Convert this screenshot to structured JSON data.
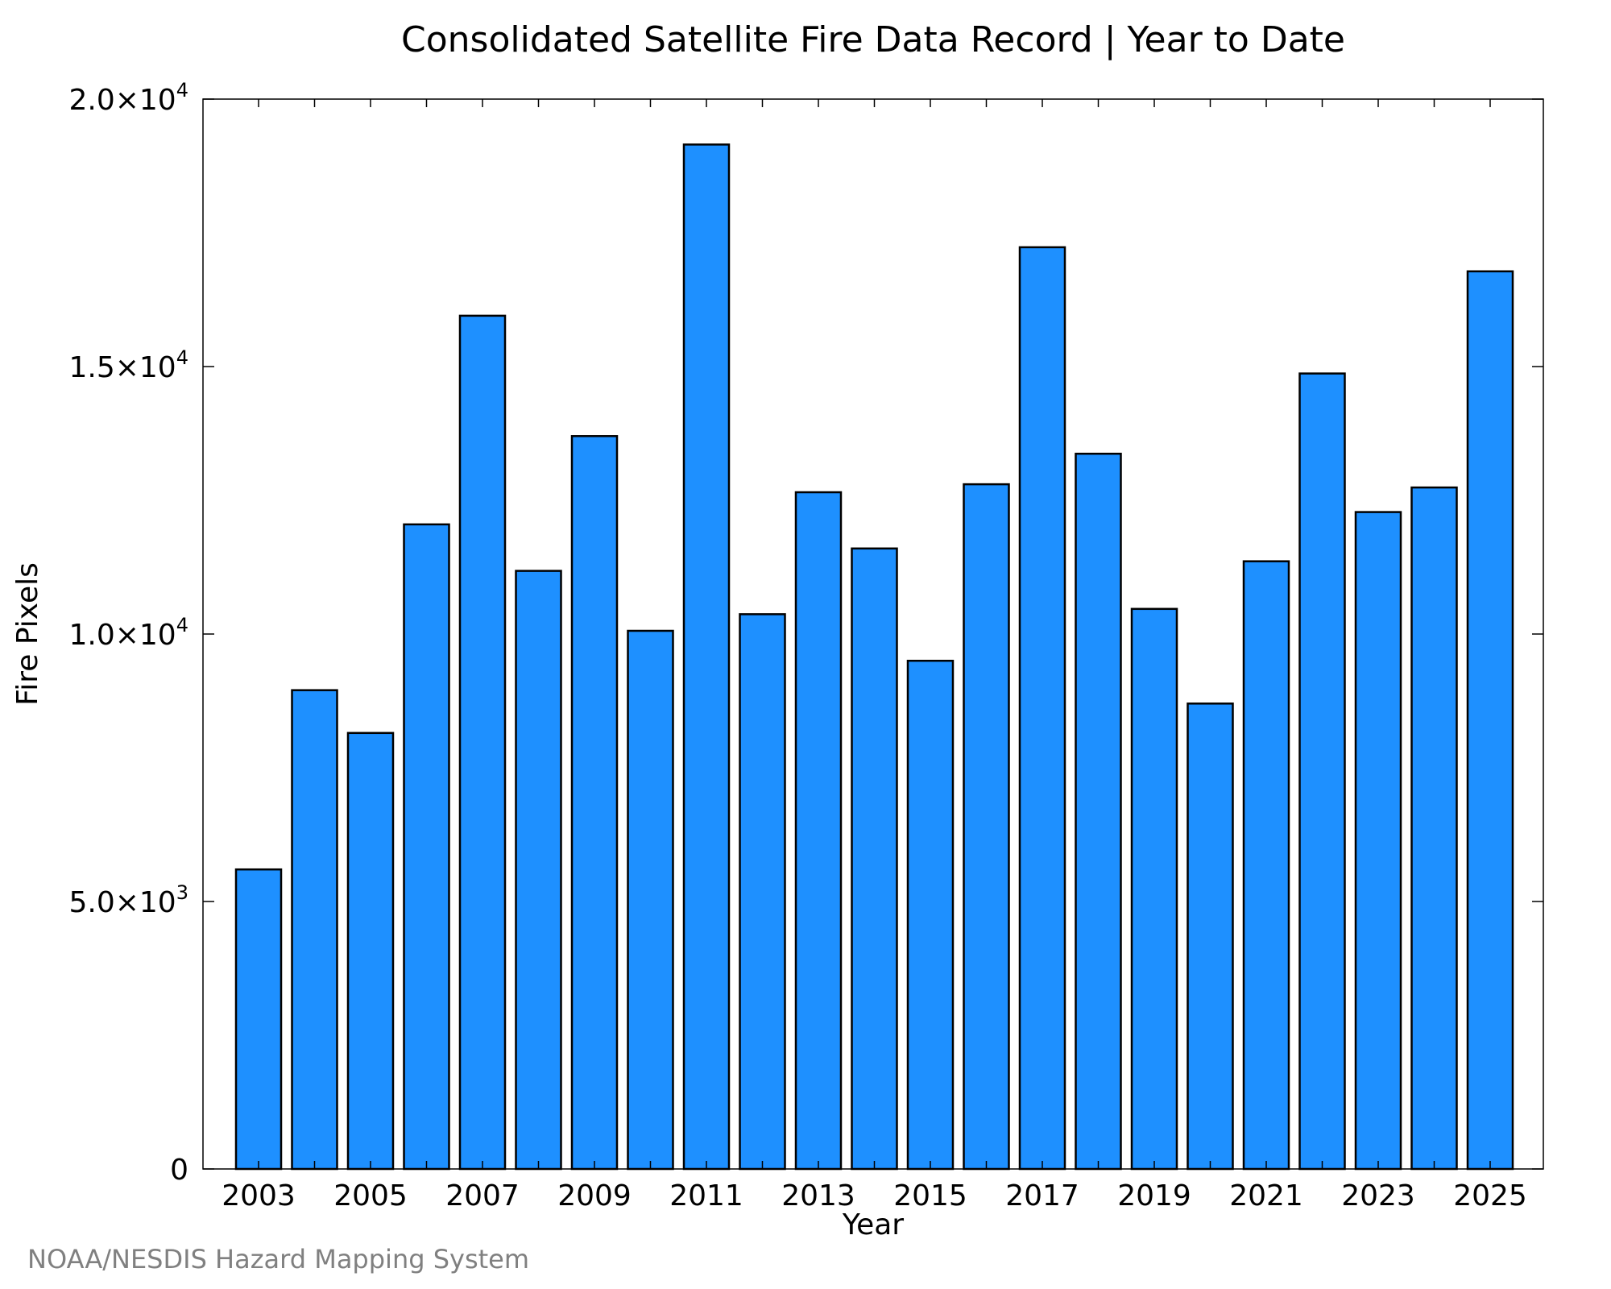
{
  "chart_data": {
    "type": "bar",
    "title": "Consolidated Satellite Fire Data Record | Year to Date",
    "xlabel": "Year",
    "ylabel": "Fire Pixels",
    "categories": [
      "2003",
      "2004",
      "2005",
      "2006",
      "2007",
      "2008",
      "2009",
      "2010",
      "2011",
      "2012",
      "2013",
      "2014",
      "2015",
      "2016",
      "2017",
      "2018",
      "2019",
      "2020",
      "2021",
      "2022",
      "2023",
      "2024",
      "2025"
    ],
    "values": [
      5600,
      8950,
      8150,
      12050,
      15950,
      11180,
      13700,
      10060,
      19150,
      10370,
      12650,
      11600,
      9500,
      12800,
      17230,
      13370,
      10470,
      8700,
      11360,
      14870,
      12280,
      12740,
      16780
    ],
    "ylim": [
      0,
      20000
    ],
    "yticks": [
      0,
      5000,
      10000,
      15000,
      20000
    ],
    "ytick_mantissas": [
      "0",
      "5.0×10",
      "1.0×10",
      "1.5×10",
      "2.0×10"
    ],
    "ytick_exponents": [
      "",
      "3",
      "4",
      "4",
      "4"
    ],
    "xticks": [
      "2003",
      "2005",
      "2007",
      "2009",
      "2011",
      "2013",
      "2015",
      "2017",
      "2019",
      "2021",
      "2023",
      "2025"
    ],
    "grid": false,
    "legend": "none",
    "bar_color": "#1e90ff",
    "edge_color": "#000000"
  },
  "credit": "NOAA/NESDIS Hazard Mapping System",
  "credit_color": "#808080"
}
